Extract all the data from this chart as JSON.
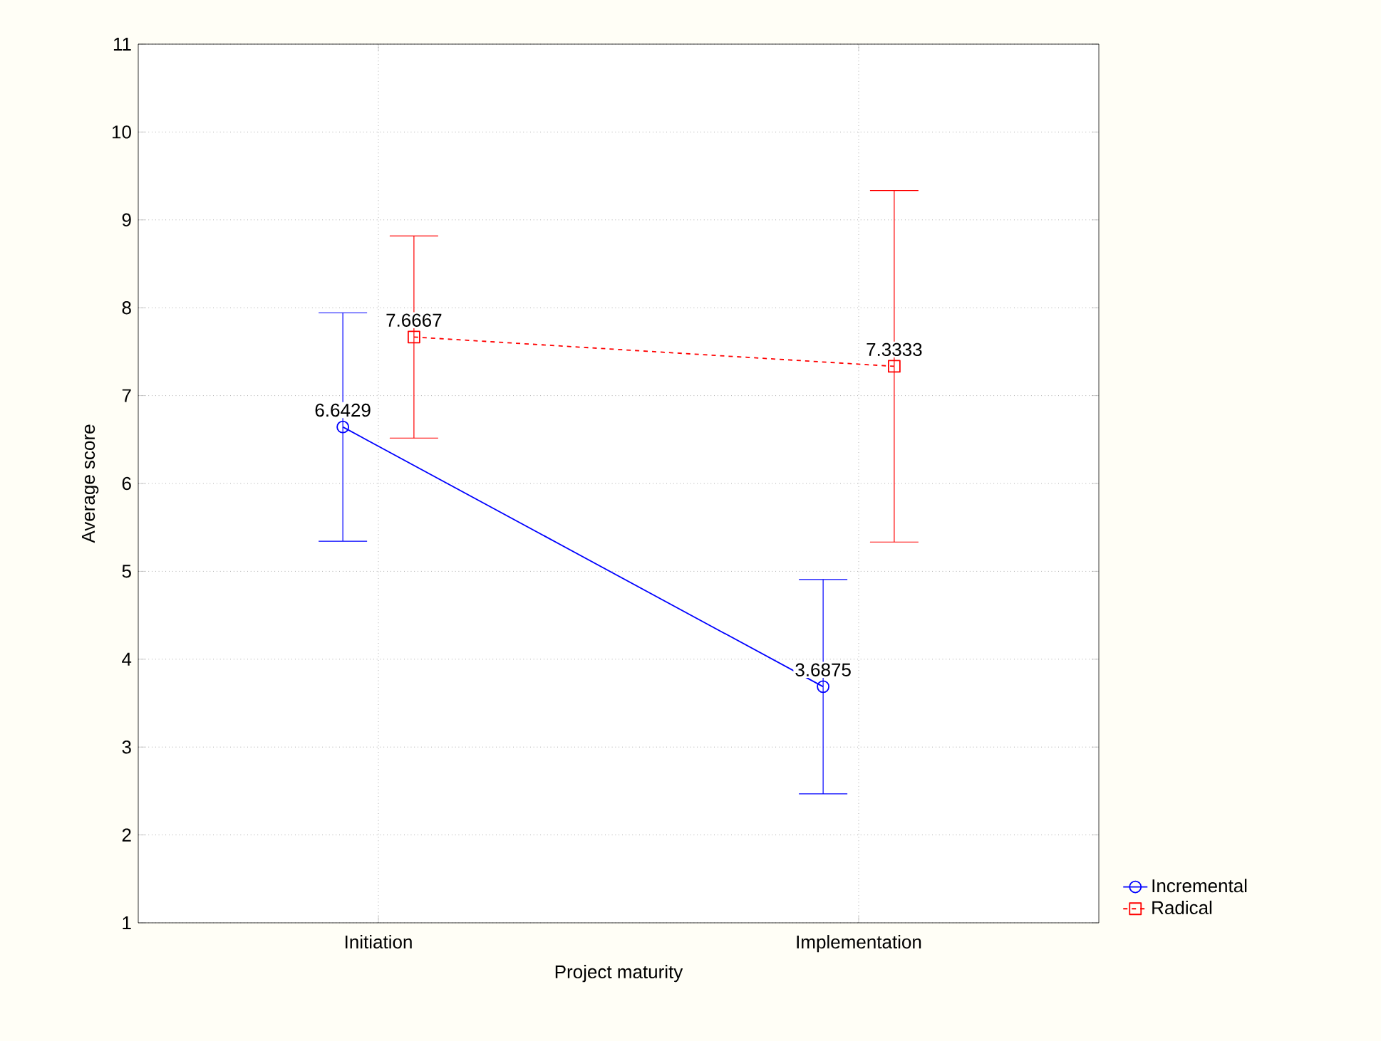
{
  "chart_data": {
    "type": "line",
    "xlabel": "Project maturity",
    "ylabel": "Average score",
    "categories": [
      "Initiation",
      "Implementation"
    ],
    "series": [
      {
        "name": "Incremental",
        "color": "#0000ff",
        "values": [
          6.6429,
          3.6875
        ],
        "errors": [
          1.3,
          1.22
        ],
        "marker": "circle",
        "line_style": "solid"
      },
      {
        "name": "Radical",
        "color": "#ff0000",
        "values": [
          7.6667,
          7.3333
        ],
        "errors": [
          1.15,
          2.0
        ],
        "marker": "square",
        "line_style": "dashed"
      }
    ],
    "ylim": [
      1,
      11
    ],
    "yticks": [
      1,
      2,
      3,
      4,
      5,
      6,
      7,
      8,
      9,
      10,
      11
    ],
    "grid": true,
    "legend": "bottom right",
    "data_labels": true
  }
}
